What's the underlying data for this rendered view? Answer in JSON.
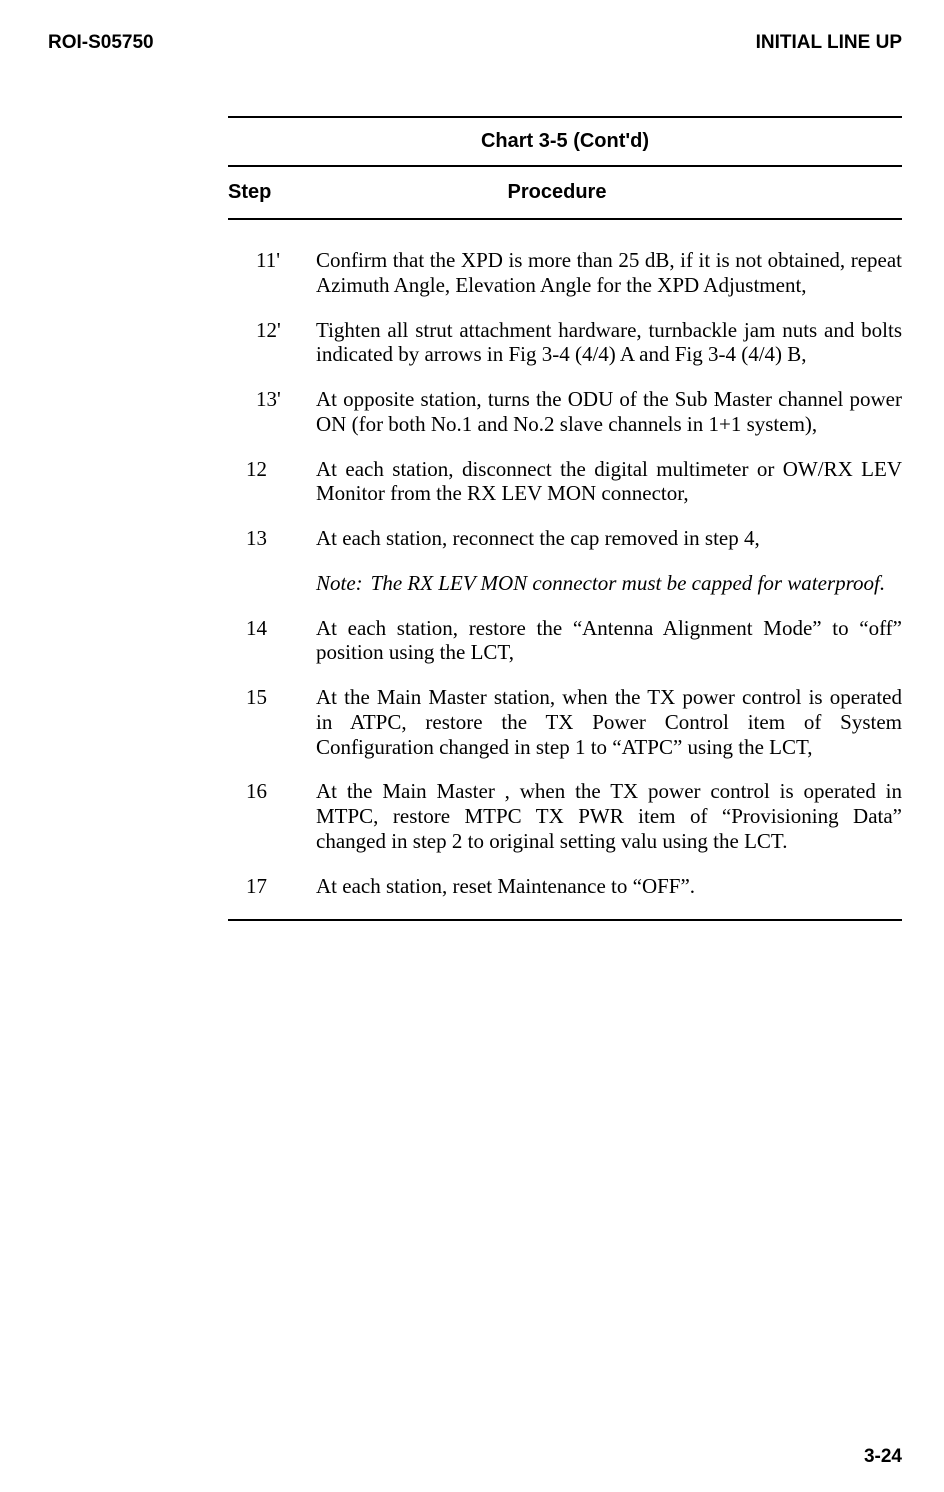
{
  "header": {
    "left": "ROI-S05750",
    "right": "INITIAL LINE UP"
  },
  "chart": {
    "title": "Chart 3-5 (Cont'd)",
    "col_step": "Step",
    "col_procedure": "Procedure"
  },
  "steps": [
    {
      "num": "11'",
      "prime": true,
      "text": "Confirm that the XPD is more than 25 dB, if it is not obtained, repeat Azimuth Angle, Elevation Angle for the XPD Adjustment,"
    },
    {
      "num": "12'",
      "prime": true,
      "text": "Tighten all strut attachment hardware, turnbackle jam nuts and bolts indicated by arrows in Fig 3-4 (4/4) A and  Fig 3-4 (4/4) B,"
    },
    {
      "num": "13'",
      "prime": true,
      "text": "At opposite station, turns the ODU of the Sub Master channel power ON (for both No.1 and No.2 slave channels in 1+1 system),"
    },
    {
      "num": "12",
      "prime": false,
      "text": "At each station, disconnect the digital multimeter or OW/RX LEV Monitor from the RX LEV MON connector,"
    },
    {
      "num": "13",
      "prime": false,
      "text": "At each station, reconnect the cap removed in step 4,"
    }
  ],
  "note": {
    "label": "Note:",
    "body": "The RX LEV MON connector must be capped for waterproof."
  },
  "steps2": [
    {
      "num": "14",
      "prime": false,
      "text": "At each station, restore the “Antenna Alignment Mode” to “off” position using the LCT,"
    },
    {
      "num": "15",
      "prime": false,
      "text": "At the Main Master station, when the TX power control is operated in ATPC, restore the TX Power Control item of System Configuration changed in step 1 to “ATPC” using the LCT,"
    },
    {
      "num": "16",
      "prime": false,
      "text": "At the Main Master , when the TX power control is operated in MTPC, restore MTPC TX PWR item of “Provisioning Data” changed in step 2 to original setting valu using the LCT."
    },
    {
      "num": "17",
      "prime": false,
      "text": "At each station, reset Maintenance to “OFF”."
    }
  ],
  "page_number": "3-24"
}
